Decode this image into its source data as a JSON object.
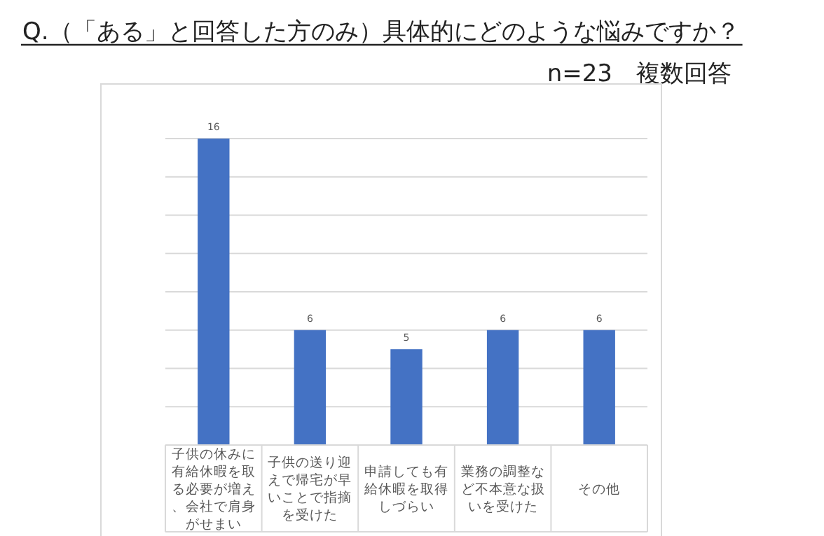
{
  "chart_data": {
    "type": "bar",
    "title": "Q.（「ある」と回答した方のみ）具体的にどのような悩みですか？",
    "subtitle": "n=23　複数回答",
    "categories": [
      "子供の休みに有給休暇を取る必要が増え、会社で肩身がせまい",
      "子供の送り迎えで帰宅が早いことで指摘を受けた",
      "申請しても有給休暇を取得しづらい",
      "業務の調整など不本意な扱いを受けた",
      "その他"
    ],
    "values": [
      16,
      6,
      5,
      6,
      6
    ],
    "color": "#4472c4",
    "ylim": [
      0,
      16
    ],
    "yticks": [
      {
        "value": 0,
        "label": null
      },
      {
        "value": 2,
        "label": null
      },
      {
        "value": 4,
        "label": null
      },
      {
        "value": 6,
        "label": null
      },
      {
        "value": 8,
        "label": null
      },
      {
        "value": 10,
        "label": null
      },
      {
        "value": 12,
        "label": null
      },
      {
        "value": 14,
        "label": null
      },
      {
        "value": 16,
        "label": null
      }
    ],
    "grid": "y",
    "data_labels": true
  }
}
